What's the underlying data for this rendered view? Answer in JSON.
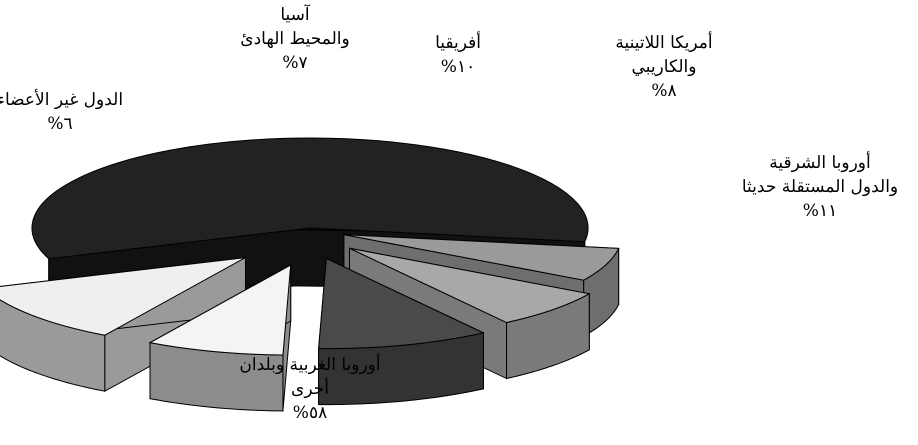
{
  "chart_data": {
    "type": "pie",
    "style": "3d-exploded",
    "slices": [
      {
        "label": [
          "أوروبا الغربية وبلدان",
          "أخرى"
        ],
        "value": 58,
        "value_text": "%٥٨",
        "color": "#222222",
        "side_color": "#111111"
      },
      {
        "label": [
          "الدول غير الأعضاء"
        ],
        "value": 6,
        "value_text": "%٦",
        "color": "#9a9a9a",
        "side_color": "#6e6e6e"
      },
      {
        "label": [
          "آسيا",
          "والمحيط الهادئ"
        ],
        "value": 7,
        "value_text": "%٧",
        "color": "#a8a8a8",
        "side_color": "#7a7a7a"
      },
      {
        "label": [
          "أفريقيا"
        ],
        "value": 10,
        "value_text": "%١٠",
        "color": "#4a4a4a",
        "side_color": "#333333"
      },
      {
        "label": [
          "أمريكا اللاتينية",
          "والكاريبي"
        ],
        "value": 8,
        "value_text": "%٨",
        "color": "#f4f4f4",
        "side_color": "#8c8c8c"
      },
      {
        "label": [
          "أوروبا الشرقية",
          "والدول المستقلة حديثا"
        ],
        "value": 11,
        "value_text": "%١١",
        "color": "#efefef",
        "side_color": "#9a9a9a"
      }
    ]
  }
}
